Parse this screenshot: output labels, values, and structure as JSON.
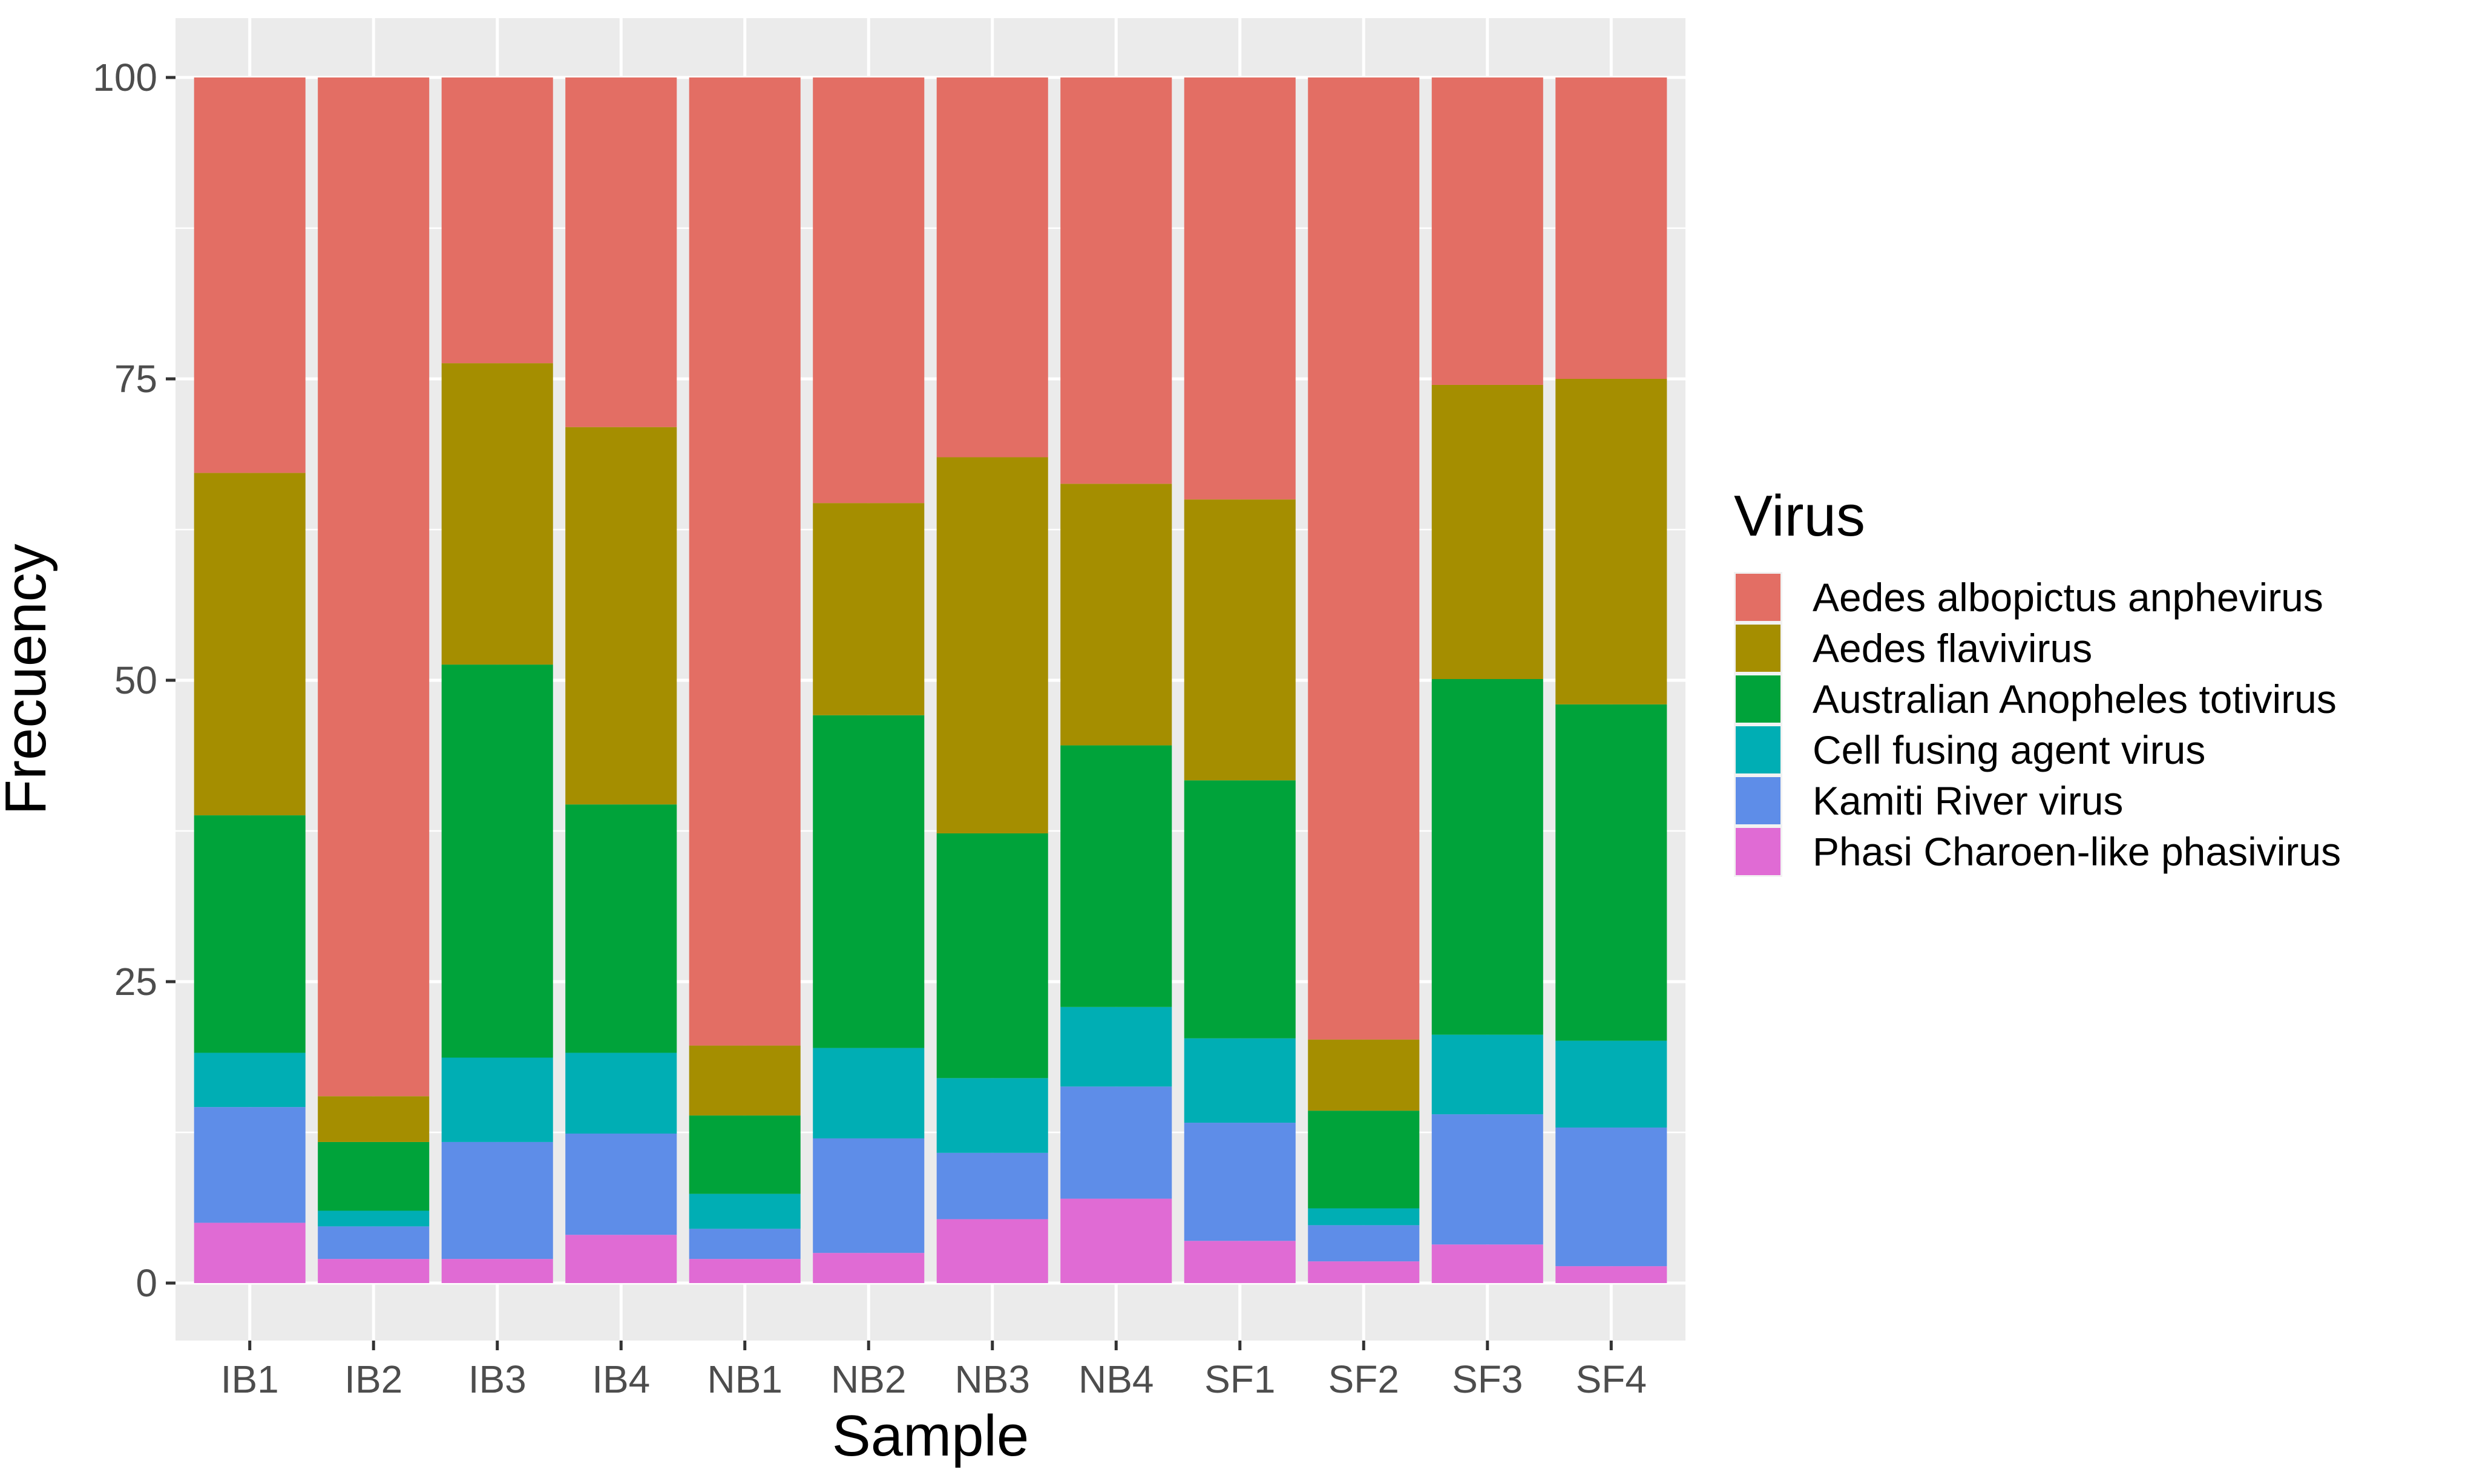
{
  "chart_data": {
    "type": "bar",
    "stacked": true,
    "xlabel": "Sample",
    "ylabel": "Frecuency",
    "ylim": [
      0,
      100
    ],
    "yticks": [
      0,
      25,
      50,
      75,
      100
    ],
    "ytick_labels": [
      "0",
      "25",
      "50",
      "75",
      "100"
    ],
    "categories": [
      "IB1",
      "IB2",
      "IB3",
      "IB4",
      "NB1",
      "NB2",
      "NB3",
      "NB4",
      "SF1",
      "SF2",
      "SF3",
      "SF4"
    ],
    "legend_title": "Virus",
    "legend_position": "right",
    "series": [
      {
        "name": "Phasi Charoen-like phasivirus",
        "color": "#E06BD4",
        "values": [
          5,
          2,
          2,
          4,
          2,
          2.5,
          5.3,
          7,
          3.5,
          1.8,
          3.2,
          1.4
        ]
      },
      {
        "name": "Kamiti River virus",
        "color": "#5E8DE8",
        "values": [
          9.6,
          2.7,
          9.7,
          8.4,
          2.5,
          9.5,
          5.5,
          9.3,
          9.8,
          3,
          10.8,
          11.5
        ]
      },
      {
        "name": "Cell fusing agent virus",
        "color": "#00AEB4",
        "values": [
          4.5,
          1.3,
          7,
          6.7,
          2.9,
          7.5,
          6.2,
          6.6,
          7,
          1.4,
          6.6,
          7.2
        ]
      },
      {
        "name": "Australian Anopheles totivirus",
        "color": "#00A33A",
        "values": [
          19.7,
          5.7,
          32.6,
          20.6,
          6.5,
          27.6,
          20.3,
          21.7,
          21.4,
          8.1,
          29.5,
          27.9
        ]
      },
      {
        "name": "Aedes flavivirus",
        "color": "#A58E00",
        "values": [
          28.4,
          3.8,
          25,
          31.3,
          5.8,
          17.6,
          31.2,
          21.7,
          23.3,
          5.9,
          24.4,
          27
        ]
      },
      {
        "name": "Aedes albopictus anphevirus",
        "color": "#E36E64",
        "values": [
          32.8,
          84.5,
          23.7,
          29,
          80.3,
          35.3,
          31.5,
          33.7,
          35,
          79.8,
          25.5,
          25
        ]
      }
    ],
    "legend_order": [
      "Aedes albopictus anphevirus",
      "Aedes flavivirus",
      "Australian Anopheles totivirus",
      "Cell fusing agent virus",
      "Kamiti River virus",
      "Phasi Charoen-like phasivirus"
    ]
  }
}
